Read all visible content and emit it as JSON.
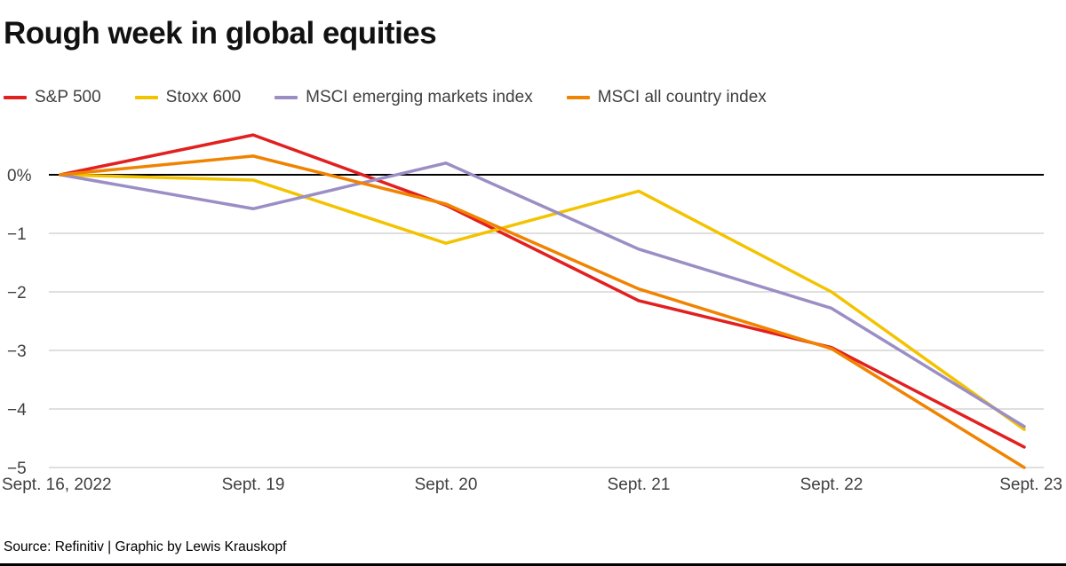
{
  "chart_data": {
    "type": "line",
    "title": "Rough week in global equities",
    "x_categories": [
      "Sept. 16, 2022",
      "Sept. 19",
      "Sept. 20",
      "Sept. 21",
      "Sept. 22",
      "Sept. 23"
    ],
    "yticks": [
      0,
      -1,
      -2,
      -3,
      -4,
      -5
    ],
    "ytick_labels": [
      "0%",
      "−1",
      "−2",
      "−3",
      "−4",
      "−5"
    ],
    "ylim": [
      -5,
      0.8
    ],
    "grid": true,
    "legend_position": "top",
    "series": [
      {
        "name": "S&P 500",
        "color": "#e1201f",
        "values": [
          0,
          0.68,
          -0.52,
          -2.15,
          -2.95,
          -4.65
        ]
      },
      {
        "name": "Stoxx 600",
        "color": "#f3c300",
        "values": [
          0,
          -0.09,
          -1.17,
          -0.28,
          -2.0,
          -4.35
        ]
      },
      {
        "name": "MSCI emerging markets index",
        "color": "#9b8ec4",
        "values": [
          0,
          -0.58,
          0.2,
          -1.27,
          -2.28,
          -4.3
        ]
      },
      {
        "name": "MSCI all country index",
        "color": "#f08300",
        "values": [
          0,
          0.32,
          -0.5,
          -1.95,
          -2.97,
          -5.0
        ]
      }
    ],
    "source": "Source: Refinitiv | Graphic by Lewis Krauskopf",
    "colors": {
      "zero_line": "#000000",
      "gridline": "#cccccc",
      "axis_text": "#3f3f3f",
      "title_text": "#111111"
    }
  }
}
